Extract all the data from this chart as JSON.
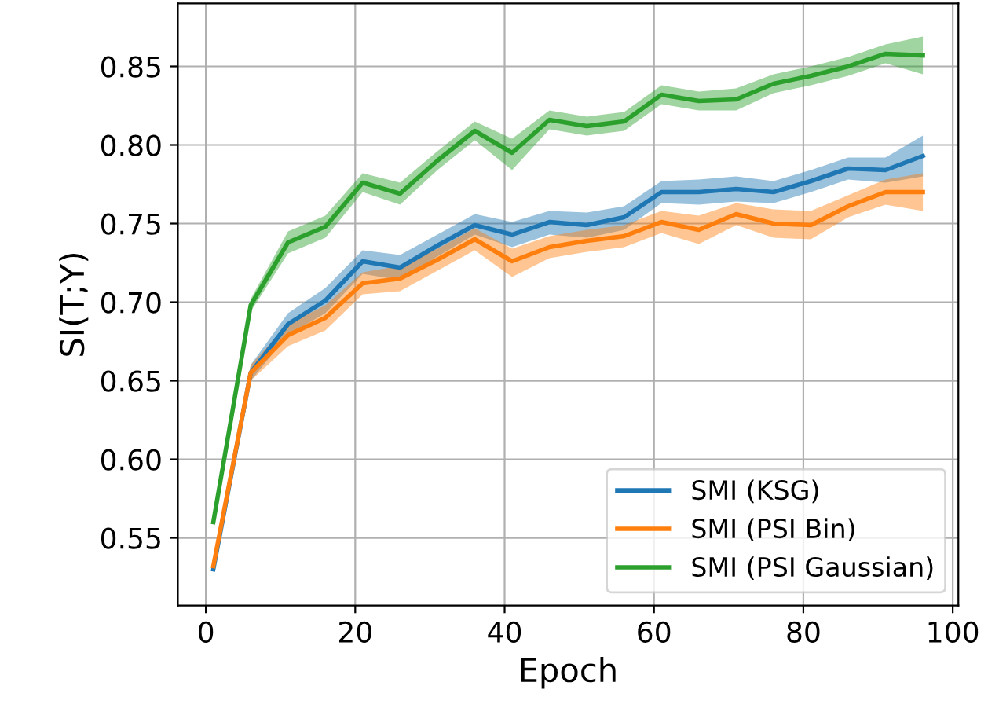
{
  "chart_data": {
    "type": "line",
    "xlabel": "Epoch",
    "ylabel": "SI(T;Y)",
    "x": [
      1,
      6,
      11,
      16,
      21,
      26,
      31,
      36,
      41,
      46,
      51,
      56,
      61,
      66,
      71,
      76,
      81,
      86,
      91,
      96
    ],
    "series": [
      {
        "name": "SMI (KSG)",
        "color": "#1f77b4",
        "values": [
          0.53,
          0.655,
          0.686,
          0.701,
          0.726,
          0.722,
          0.736,
          0.749,
          0.743,
          0.751,
          0.749,
          0.754,
          0.77,
          0.77,
          0.772,
          0.77,
          0.777,
          0.785,
          0.784,
          0.793
        ],
        "lower": [
          0.529,
          0.65,
          0.679,
          0.693,
          0.718,
          0.714,
          0.729,
          0.743,
          0.735,
          0.743,
          0.741,
          0.746,
          0.763,
          0.762,
          0.764,
          0.763,
          0.77,
          0.778,
          0.776,
          0.78
        ],
        "upper": [
          0.531,
          0.66,
          0.693,
          0.709,
          0.733,
          0.73,
          0.743,
          0.756,
          0.751,
          0.758,
          0.757,
          0.761,
          0.777,
          0.778,
          0.78,
          0.777,
          0.784,
          0.792,
          0.792,
          0.806
        ]
      },
      {
        "name": "SMI (PSI Bin)",
        "color": "#ff7f0e",
        "values": [
          0.532,
          0.655,
          0.679,
          0.69,
          0.712,
          0.715,
          0.727,
          0.74,
          0.726,
          0.735,
          0.739,
          0.742,
          0.751,
          0.746,
          0.756,
          0.75,
          0.749,
          0.761,
          0.77,
          0.77
        ],
        "lower": [
          0.531,
          0.65,
          0.672,
          0.682,
          0.705,
          0.707,
          0.72,
          0.733,
          0.716,
          0.728,
          0.732,
          0.735,
          0.744,
          0.737,
          0.749,
          0.741,
          0.74,
          0.754,
          0.762,
          0.758
        ],
        "upper": [
          0.533,
          0.66,
          0.686,
          0.698,
          0.719,
          0.723,
          0.734,
          0.747,
          0.734,
          0.742,
          0.746,
          0.749,
          0.758,
          0.755,
          0.763,
          0.759,
          0.758,
          0.768,
          0.778,
          0.782
        ]
      },
      {
        "name": "SMI (PSI Gaussian)",
        "color": "#2ca02c",
        "values": [
          0.56,
          0.698,
          0.738,
          0.748,
          0.776,
          0.769,
          0.79,
          0.809,
          0.795,
          0.816,
          0.812,
          0.815,
          0.832,
          0.828,
          0.829,
          0.839,
          0.844,
          0.85,
          0.858,
          0.857
        ],
        "lower": [
          0.559,
          0.694,
          0.731,
          0.741,
          0.77,
          0.762,
          0.784,
          0.803,
          0.784,
          0.81,
          0.806,
          0.809,
          0.826,
          0.822,
          0.822,
          0.833,
          0.838,
          0.844,
          0.852,
          0.845
        ],
        "upper": [
          0.561,
          0.702,
          0.745,
          0.755,
          0.782,
          0.776,
          0.796,
          0.815,
          0.804,
          0.822,
          0.818,
          0.821,
          0.838,
          0.834,
          0.836,
          0.845,
          0.85,
          0.856,
          0.864,
          0.869
        ]
      }
    ],
    "xlim": [
      -3.75,
      100.75
    ],
    "ylim": [
      0.507,
      0.89
    ],
    "xticks": [
      0,
      20,
      40,
      60,
      80,
      100
    ],
    "yticks": [
      {
        "value": 0.55,
        "label": "0.55"
      },
      {
        "value": 0.6,
        "label": "0.60"
      },
      {
        "value": 0.65,
        "label": "0.65"
      },
      {
        "value": 0.7,
        "label": "0.70"
      },
      {
        "value": 0.75,
        "label": "0.75"
      },
      {
        "value": 0.8,
        "label": "0.80"
      },
      {
        "value": 0.85,
        "label": "0.85"
      }
    ],
    "grid": true,
    "legend": "lower right",
    "line_style": "solid",
    "marker": "none"
  }
}
